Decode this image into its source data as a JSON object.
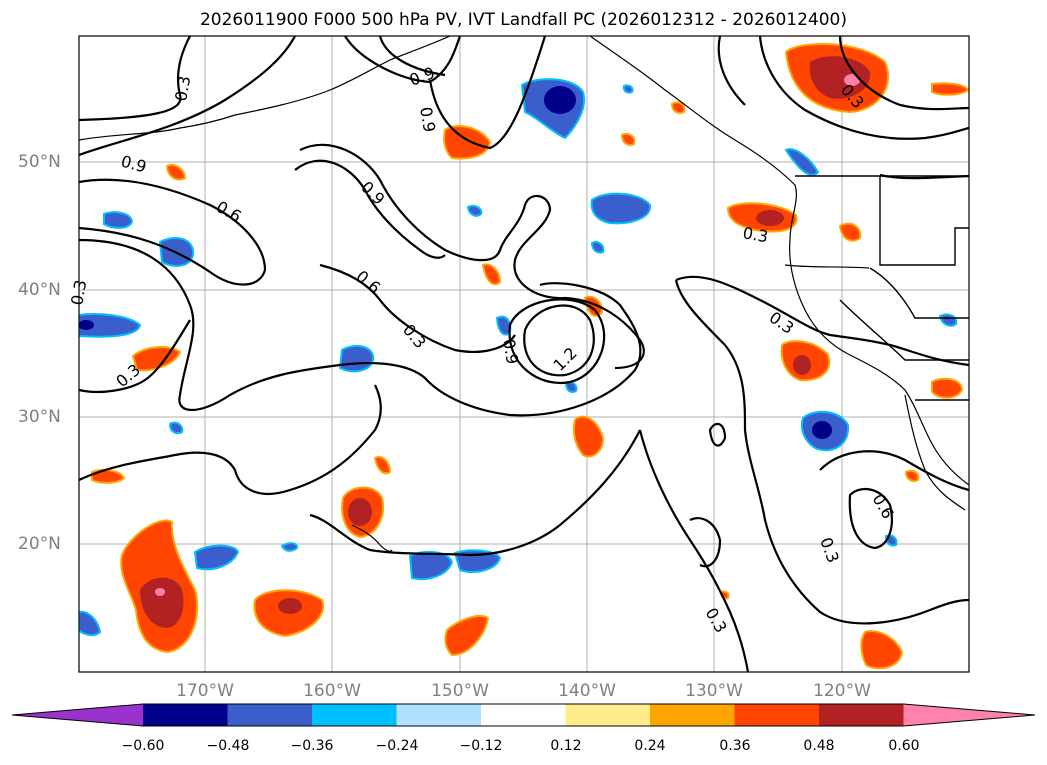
{
  "title": "2026011900 F000 500 hPa PV, IVT Landfall PC (2026012312 - 2026012400)",
  "lat_labels": [
    "50°N",
    "40°N",
    "30°N",
    "20°N"
  ],
  "lon_labels": [
    "170°W",
    "160°W",
    "150°W",
    "140°W",
    "130°W",
    "120°W"
  ],
  "contour_labels": [
    "0.3",
    "0.9",
    "0.9",
    "0.9",
    "0.6",
    "0.9",
    "0.6",
    "0.3",
    "0.3",
    "0.3",
    "0.9",
    "1.2",
    "0.3",
    "0.3",
    "0.6",
    "0.3",
    "0.3",
    "0.3"
  ],
  "colorbar": {
    "labels": [
      "−0.60",
      "−0.48",
      "−0.36",
      "−0.24",
      "−0.12",
      "0.12",
      "0.24",
      "0.36",
      "0.48",
      "0.60"
    ],
    "colors": [
      "#9a32cd",
      "#00008b",
      "#3a5fcd",
      "#00bfff",
      "#b0e2ff",
      "#ffffff",
      "#ffec8b",
      "#ffa500",
      "#ff4500",
      "#b22222",
      "#ff82ab"
    ]
  },
  "colors": {
    "grid": "#b0b0b0",
    "contour": "#000000",
    "axis_label": "#808080"
  }
}
